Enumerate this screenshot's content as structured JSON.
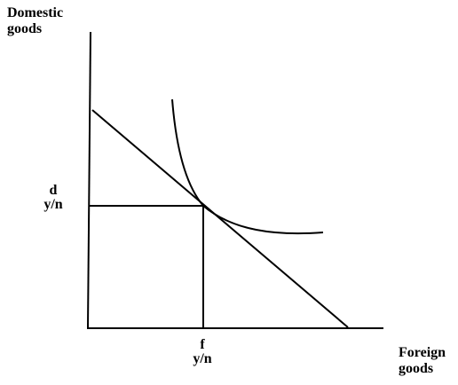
{
  "y_axis": {
    "line1": "Domestic",
    "line2": "goods"
  },
  "x_axis": {
    "line1": "Foreign",
    "line2": "goods"
  },
  "tangency_labels": {
    "domestic_superscript": "d",
    "domestic_value": "y/n",
    "foreign_superscript": "f",
    "foreign_value": "y/n"
  },
  "colors": {
    "ink": "#000000",
    "background": "#ffffff"
  }
}
